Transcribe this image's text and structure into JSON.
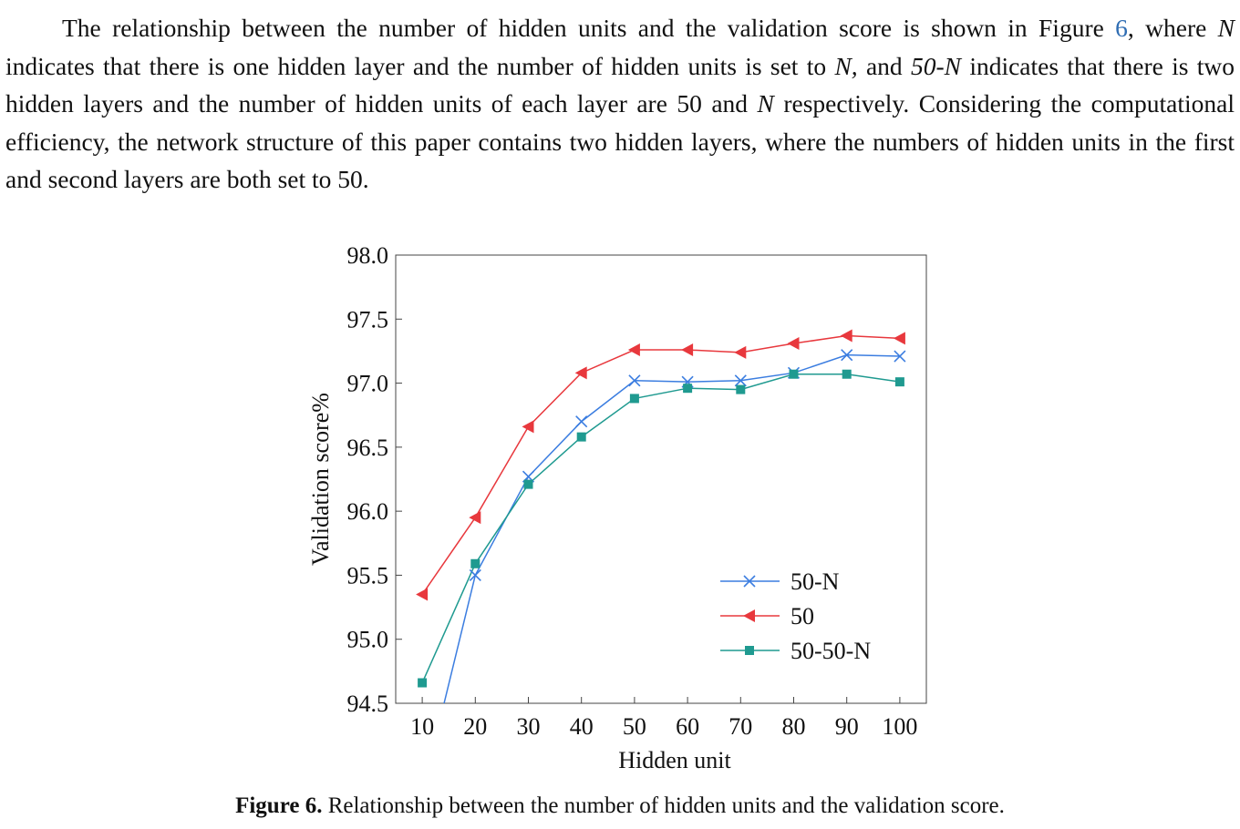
{
  "paragraph": {
    "s1": "The relationship between the number of hidden units and the validation score is shown in Figure",
    "fig_ref": "6",
    "s2": ", where",
    "n1": "N",
    "s3": "indicates that there is one hidden layer and the number of hidden units is set to",
    "n2": "N,",
    "s4": "and",
    "n3": "50-N",
    "s5": "indicates that there is two hidden layers and the number of hidden units of each layer are 50 and",
    "n4": "N",
    "s6": "respectively. Considering the computational efficiency, the network structure of this paper contains two hidden layers, where the numbers of hidden units in the first and second layers are both set to 50."
  },
  "caption": {
    "label": "Figure 6.",
    "text": "Relationship between the number of hidden units and the validation score."
  },
  "chart_data": {
    "type": "line",
    "xlabel": "Hidden unit",
    "ylabel": "Validation score%",
    "xlim": [
      5,
      105
    ],
    "ylim": [
      94.5,
      98.0
    ],
    "xticks": [
      10,
      20,
      30,
      40,
      50,
      60,
      70,
      80,
      90,
      100
    ],
    "yticks": [
      94.5,
      95.0,
      95.5,
      96.0,
      96.5,
      97.0,
      97.5,
      98.0
    ],
    "ytick_labels": [
      "94.5",
      "95.0",
      "95.5",
      "96.0",
      "96.5",
      "97.0",
      "97.5",
      "98.0"
    ],
    "legend_position": "lower-right",
    "series": [
      {
        "name": "50-N",
        "marker": "x",
        "color": "#3b7de0",
        "x": [
          10,
          20,
          30,
          40,
          50,
          60,
          70,
          80,
          90,
          100
        ],
        "y": [
          93.8,
          95.5,
          96.27,
          96.7,
          97.02,
          97.01,
          97.02,
          97.08,
          97.22,
          97.21
        ]
      },
      {
        "name": "50",
        "marker": "triangle-left",
        "color": "#e8383d",
        "x": [
          10,
          20,
          30,
          40,
          50,
          60,
          70,
          80,
          90,
          100
        ],
        "y": [
          95.35,
          95.95,
          96.66,
          97.08,
          97.26,
          97.26,
          97.24,
          97.31,
          97.37,
          97.35
        ]
      },
      {
        "name": "50-50-N",
        "marker": "square",
        "color": "#1f9a90",
        "x": [
          10,
          20,
          30,
          40,
          50,
          60,
          70,
          80,
          90,
          100
        ],
        "y": [
          94.66,
          95.59,
          96.21,
          96.58,
          96.88,
          96.96,
          96.95,
          97.07,
          97.07,
          97.01
        ]
      }
    ]
  }
}
